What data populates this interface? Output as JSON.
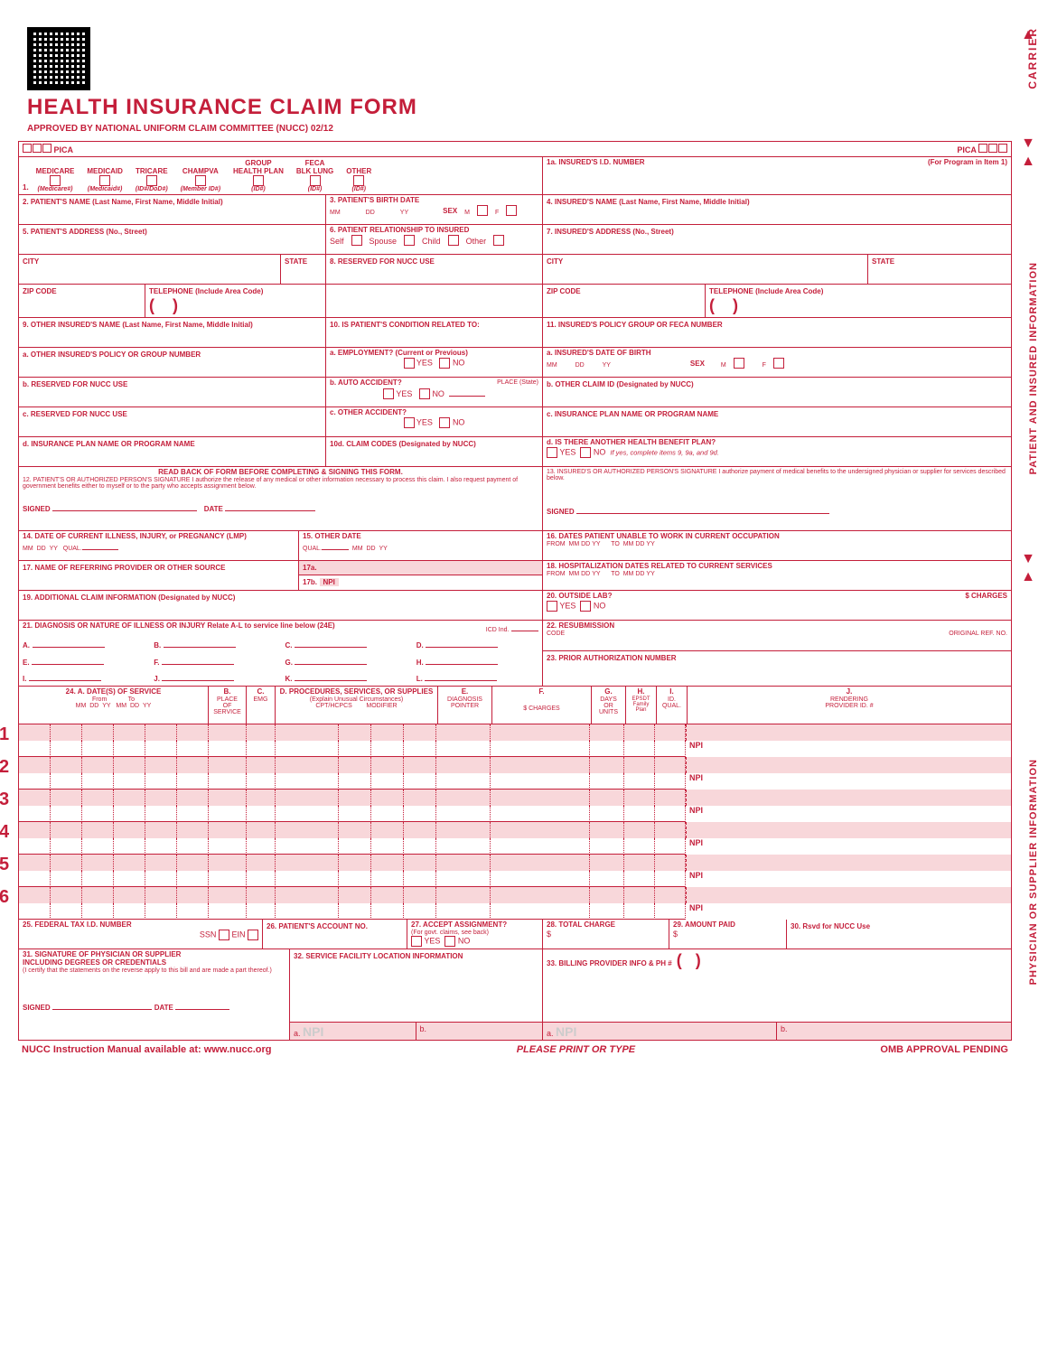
{
  "header": {
    "title": "HEALTH INSURANCE CLAIM FORM",
    "subtitle": "APPROVED BY NATIONAL UNIFORM CLAIM COMMITTEE (NUCC) 02/12",
    "pica": "PICA"
  },
  "side": {
    "carrier": "CARRIER",
    "patient": "PATIENT AND INSURED INFORMATION",
    "physician": "PHYSICIAN OR SUPPLIER INFORMATION"
  },
  "box1": {
    "label": "1.",
    "medicare": "MEDICARE",
    "medicare_sub": "(Medicare#)",
    "medicaid": "MEDICAID",
    "medicaid_sub": "(Medicaid#)",
    "tricare": "TRICARE",
    "tricare_sub": "(ID#/DoD#)",
    "champva": "CHAMPVA",
    "champva_sub": "(Member ID#)",
    "group": "GROUP\nHEALTH PLAN",
    "group_sub": "(ID#)",
    "feca": "FECA\nBLK LUNG",
    "feca_sub": "(ID#)",
    "other": "OTHER",
    "other_sub": "(ID#)"
  },
  "box1a": {
    "label": "1a. INSURED'S I.D. NUMBER",
    "for": "(For Program in Item 1)"
  },
  "box2": "2. PATIENT'S NAME (Last Name, First Name, Middle Initial)",
  "box3": {
    "label": "3. PATIENT'S BIRTH DATE",
    "m": "MM",
    "d": "DD",
    "y": "YY",
    "sex": "SEX",
    "male": "M",
    "female": "F"
  },
  "box4": "4. INSURED'S NAME (Last Name, First Name, Middle Initial)",
  "box5": "5. PATIENT'S ADDRESS (No., Street)",
  "box6": {
    "label": "6. PATIENT RELATIONSHIP TO INSURED",
    "self": "Self",
    "spouse": "Spouse",
    "child": "Child",
    "other": "Other"
  },
  "box7": "7. INSURED'S ADDRESS (No., Street)",
  "city": "CITY",
  "state": "STATE",
  "zip": "ZIP CODE",
  "phone": "TELEPHONE (Include Area Code)",
  "box8": "8. RESERVED FOR NUCC USE",
  "box9": "9. OTHER INSURED'S NAME (Last Name, First Name, Middle Initial)",
  "box9a": "a. OTHER INSURED'S POLICY OR GROUP NUMBER",
  "box9b": "b. RESERVED FOR NUCC USE",
  "box9c": "c. RESERVED FOR NUCC USE",
  "box9d": "d. INSURANCE PLAN NAME OR PROGRAM NAME",
  "box10": "10. IS PATIENT'S CONDITION RELATED TO:",
  "box10a": "a. EMPLOYMENT? (Current or Previous)",
  "box10b": "b. AUTO ACCIDENT?",
  "box10b_place": "PLACE (State)",
  "box10c": "c. OTHER ACCIDENT?",
  "box10d": "10d. CLAIM CODES (Designated by NUCC)",
  "yes": "YES",
  "no": "NO",
  "box11": "11. INSURED'S POLICY GROUP OR FECA NUMBER",
  "box11a": "a. INSURED'S DATE OF BIRTH",
  "box11b": "b. OTHER CLAIM ID (Designated by NUCC)",
  "box11c": "c. INSURANCE PLAN NAME OR PROGRAM NAME",
  "box11d": {
    "label": "d. IS THERE ANOTHER HEALTH BENEFIT PLAN?",
    "hint": "If yes, complete items 9, 9a, and 9d."
  },
  "box12": {
    "readback": "READ BACK OF FORM BEFORE COMPLETING & SIGNING THIS FORM.",
    "text": "12. PATIENT'S OR AUTHORIZED PERSON'S SIGNATURE  I authorize the release of any medical or other information necessary to process this claim. I also request payment of government benefits either to myself or to the party who accepts assignment below.",
    "signed": "SIGNED",
    "date": "DATE"
  },
  "box13": "13. INSURED'S OR AUTHORIZED PERSON'S SIGNATURE I authorize payment of medical benefits to the undersigned physician or supplier for services described below.",
  "box14": {
    "label": "14. DATE OF CURRENT ILLNESS, INJURY, or PREGNANCY (LMP)",
    "qual": "QUAL."
  },
  "box15": {
    "label": "15. OTHER DATE",
    "qual": "QUAL."
  },
  "box16": {
    "label": "16. DATES PATIENT UNABLE TO WORK IN CURRENT OCCUPATION",
    "from": "FROM",
    "to": "TO"
  },
  "box17": {
    "label": "17. NAME OF REFERRING PROVIDER OR OTHER SOURCE",
    "a": "17a.",
    "b": "17b.",
    "npi": "NPI"
  },
  "box18": {
    "label": "18. HOSPITALIZATION DATES RELATED TO CURRENT SERVICES",
    "from": "FROM",
    "to": "TO"
  },
  "box19": "19. ADDITIONAL CLAIM INFORMATION (Designated by NUCC)",
  "box20": {
    "label": "20. OUTSIDE LAB?",
    "charges": "$ CHARGES"
  },
  "box21": {
    "label": "21. DIAGNOSIS OR NATURE OF ILLNESS OR INJURY  Relate A-L to service line below (24E)",
    "icd": "ICD Ind.",
    "letters": [
      "A.",
      "B.",
      "C.",
      "D.",
      "E.",
      "F.",
      "G.",
      "H.",
      "I.",
      "J.",
      "K.",
      "L."
    ]
  },
  "box22": {
    "label": "22. RESUBMISSION",
    "code": "CODE",
    "orig": "ORIGINAL REF. NO."
  },
  "box23": "23. PRIOR AUTHORIZATION NUMBER",
  "box24": {
    "a": "24. A.      DATE(S) OF SERVICE",
    "from": "From",
    "to": "To",
    "b": "B.",
    "b2": "PLACE OF",
    "b3": "SERVICE",
    "c": "C.",
    "c2": "EMG",
    "d": "D. PROCEDURES, SERVICES, OR SUPPLIES",
    "d2": "(Explain Unusual Circumstances)",
    "cpt": "CPT/HCPCS",
    "mod": "MODIFIER",
    "e": "E.",
    "e2": "DIAGNOSIS",
    "e3": "POINTER",
    "f": "F.",
    "f2": "$ CHARGES",
    "g": "G.",
    "g2": "DAYS OR UNITS",
    "h": "H.",
    "h2": "EPSDT Family Plan",
    "i": "I.",
    "i2": "ID. QUAL.",
    "j": "J.",
    "j2": "RENDERING",
    "j3": "PROVIDER ID. #",
    "npi": "NPI",
    "mm": "MM",
    "dd": "DD",
    "yy": "YY"
  },
  "svc_nums": [
    "1",
    "2",
    "3",
    "4",
    "5",
    "6"
  ],
  "box25": {
    "label": "25. FEDERAL TAX I.D. NUMBER",
    "ssn": "SSN",
    "ein": "EIN"
  },
  "box26": "26. PATIENT'S ACCOUNT NO.",
  "box27": {
    "label": "27. ACCEPT ASSIGNMENT?",
    "sub": "(For govt. claims, see back)"
  },
  "box28": "28. TOTAL CHARGE",
  "box29": "29. AMOUNT PAID",
  "box30": "30. Rsvd for NUCC Use",
  "box31": {
    "label": "31. SIGNATURE OF PHYSICIAN OR SUPPLIER",
    "l2": "INCLUDING DEGREES OR CREDENTIALS",
    "l3": "(I certify that the statements on the reverse apply to this bill and are made a part thereof.)",
    "signed": "SIGNED",
    "date": "DATE"
  },
  "box32": {
    "label": "32. SERVICE FACILITY LOCATION INFORMATION",
    "a": "a.",
    "b": "b.",
    "npi": "NPI"
  },
  "box33": {
    "label": "33. BILLING PROVIDER INFO & PH #",
    "a": "a.",
    "b": "b.",
    "npi": "NPI"
  },
  "dollar": "$",
  "footer": {
    "left": "NUCC Instruction Manual available at: www.nucc.org",
    "center": "PLEASE PRINT OR TYPE",
    "right": "OMB APPROVAL PENDING"
  }
}
